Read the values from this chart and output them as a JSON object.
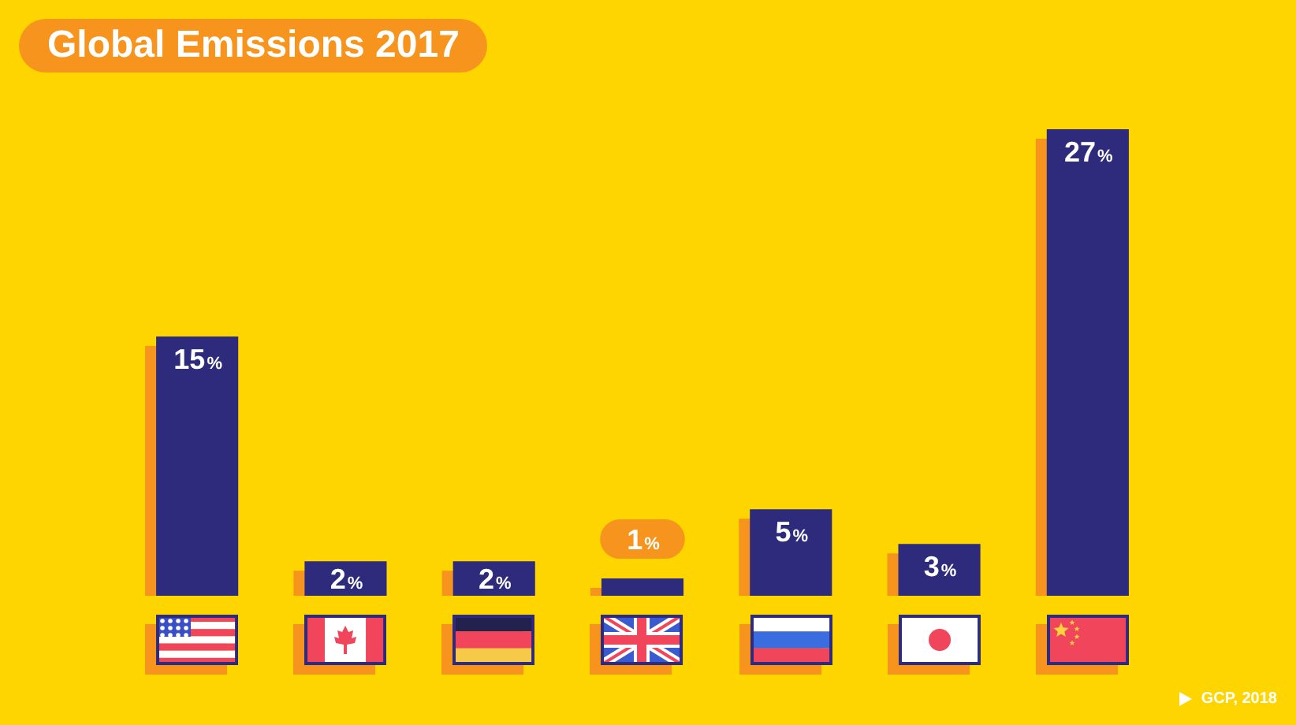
{
  "chart_data": {
    "type": "bar",
    "title": "Global Emissions 2017",
    "categories": [
      null,
      null,
      null,
      null,
      null,
      null,
      null
    ],
    "values": [
      15,
      2,
      2,
      1,
      5,
      3,
      27
    ],
    "color": "#2e2b7d",
    "data_labels": true,
    "value_labels": [
      "15%",
      "2%",
      "2%",
      "1%",
      "5%",
      "3%",
      "27%"
    ],
    "annotations": [
      "GCP, 2018"
    ],
    "tick_labels": false
  }
}
